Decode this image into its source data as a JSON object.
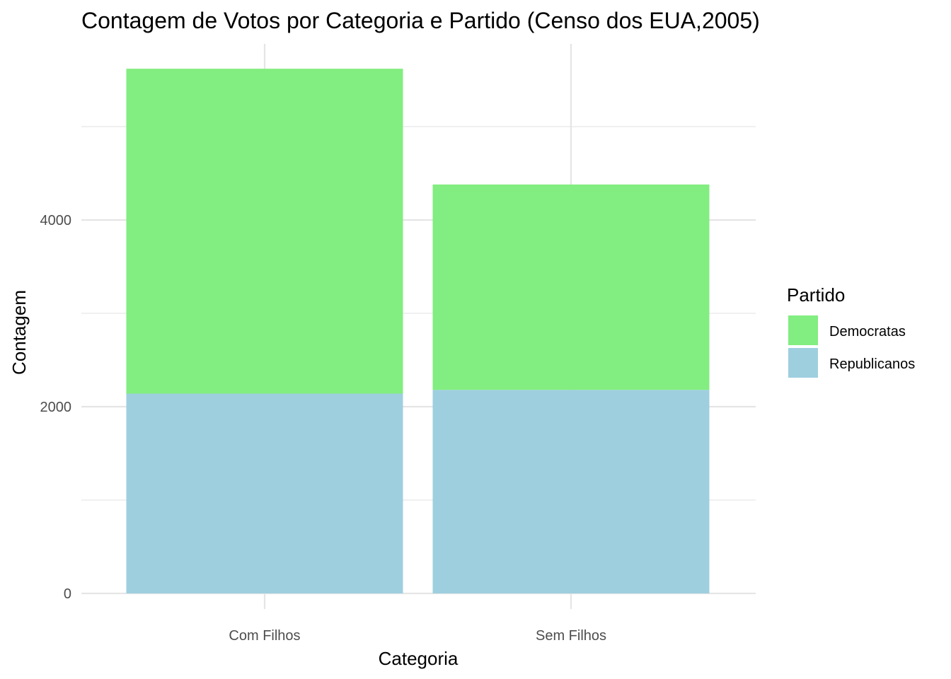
{
  "chart_data": {
    "type": "bar",
    "stacked": true,
    "title": "Contagem de Votos por Categoria e Partido (Censo dos EUA,2005)",
    "xlabel": "Categoria",
    "ylabel": "Contagem",
    "categories": [
      "Com Filhos",
      "Sem Filhos"
    ],
    "series": [
      {
        "name": "Republicanos",
        "color": "#9ecfdf",
        "values": [
          2140,
          2180
        ]
      },
      {
        "name": "Democratas",
        "color": "#82ed80",
        "values": [
          3480,
          2200
        ]
      }
    ],
    "yticks": [
      0,
      2000,
      4000
    ],
    "ylim": [
      0,
      5900
    ],
    "grid": true,
    "legend": {
      "title": "Partido",
      "position": "right",
      "items": [
        "Democratas",
        "Republicanos"
      ]
    }
  }
}
